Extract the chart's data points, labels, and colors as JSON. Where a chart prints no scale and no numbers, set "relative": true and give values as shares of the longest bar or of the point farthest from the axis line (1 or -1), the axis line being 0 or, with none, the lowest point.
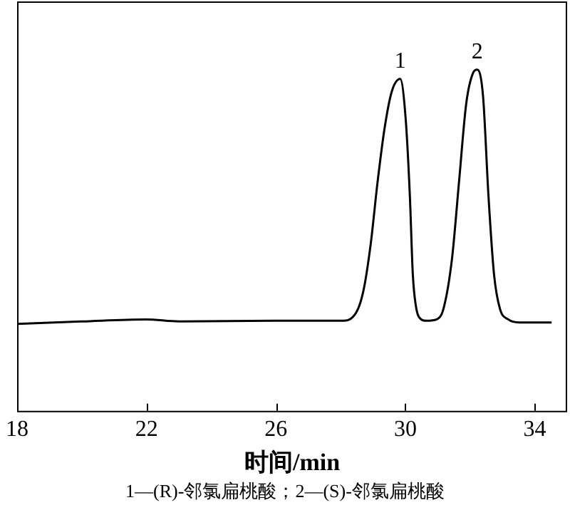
{
  "chart_data": {
    "type": "line",
    "relative": true,
    "xlabel": "时间/min",
    "x": [
      18.0,
      20.0,
      21.99,
      23.0,
      26.0,
      28.02,
      28.49,
      28.71,
      28.93,
      29.14,
      29.36,
      29.58,
      29.84,
      30.01,
      30.14,
      30.23,
      30.32,
      30.49,
      30.66,
      30.97,
      31.18,
      31.44,
      31.66,
      31.88,
      32.09,
      32.22,
      32.4,
      32.57,
      32.74,
      32.92,
      33.18,
      33.53,
      34.52
    ],
    "series": [
      {
        "color": "#000000",
        "values": [
          0.255,
          0.262,
          0.268,
          0.262,
          0.264,
          0.264,
          0.29,
          0.355,
          0.49,
          0.67,
          0.83,
          0.936,
          0.973,
          0.855,
          0.627,
          0.4,
          0.31,
          0.268,
          0.264,
          0.268,
          0.3,
          0.445,
          0.673,
          0.9,
          0.99,
          1,
          0.923,
          0.627,
          0.4,
          0.3,
          0.268,
          0.259,
          0.259
        ]
      }
    ],
    "xlim": [
      18,
      35
    ],
    "xticks": [
      18,
      22,
      26,
      30,
      34
    ],
    "tick_labels": "x",
    "grid": false,
    "legend": false,
    "marker": "none",
    "line_style": "solid",
    "annotations": [
      {
        "text": "1",
        "x": 29.84,
        "y": 0.973
      },
      {
        "text": "2",
        "x": 32.22,
        "y": 1
      },
      "1—(R)-邻氯扁桃酸；2—(S)-邻氯扁桃酸"
    ]
  }
}
